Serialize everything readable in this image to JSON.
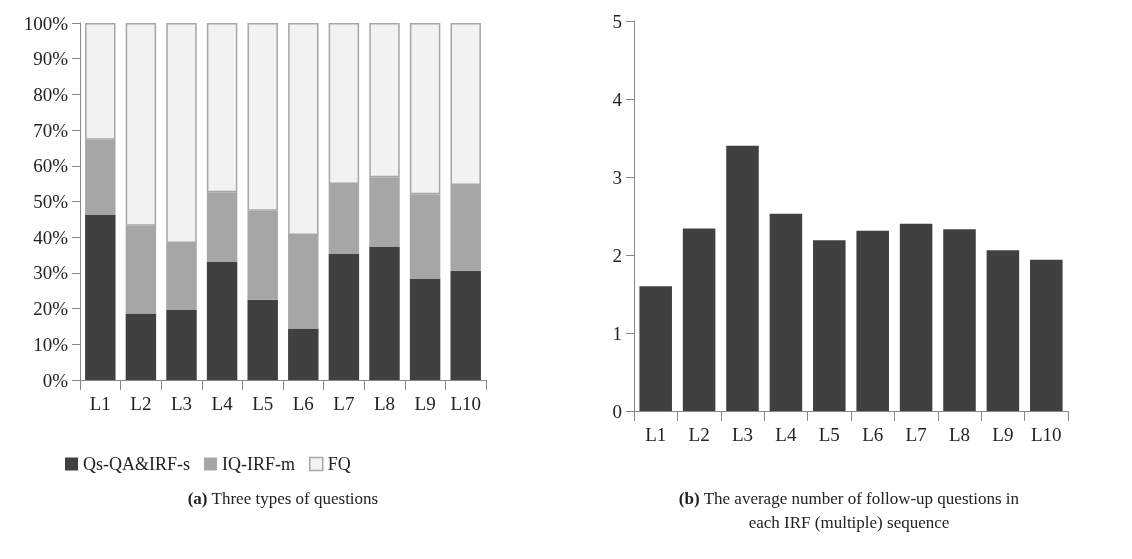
{
  "chart_data": [
    {
      "type": "bar",
      "stacked": true,
      "categories": [
        "L1",
        "L2",
        "L3",
        "L4",
        "L5",
        "L6",
        "L7",
        "L8",
        "L9",
        "L10"
      ],
      "series": [
        {
          "name": "Qs-QA&IRF-s",
          "color": "#404040",
          "values": [
            46.2,
            18.6,
            19.6,
            33.2,
            22.5,
            14.4,
            35.3,
            37.4,
            28.3,
            30.6
          ]
        },
        {
          "name": "IQ-IRF-m",
          "color": "#a6a6a6",
          "values": [
            21.1,
            24.6,
            18.8,
            19.4,
            24.9,
            26.2,
            19.6,
            19.4,
            23.7,
            24.0
          ]
        },
        {
          "name": "FQ",
          "color": "#f2f2f2",
          "values": [
            32.7,
            56.8,
            61.6,
            47.4,
            52.6,
            59.4,
            45.1,
            43.2,
            48.0,
            45.4
          ]
        }
      ],
      "ylim": [
        0,
        100
      ],
      "yticks": [
        {
          "value": 0,
          "label": "0%"
        },
        {
          "value": 10,
          "label": "10%"
        },
        {
          "value": 20,
          "label": "20%"
        },
        {
          "value": 30,
          "label": "30%"
        },
        {
          "value": 40,
          "label": "40%"
        },
        {
          "value": 50,
          "label": "50%"
        },
        {
          "value": 60,
          "label": "60%"
        },
        {
          "value": 70,
          "label": "70%"
        },
        {
          "value": 80,
          "label": "80%"
        },
        {
          "value": 90,
          "label": "90%"
        },
        {
          "value": 100,
          "label": "100%"
        }
      ],
      "grid": false,
      "legend": "bottom",
      "annotations": [
        "(a) Three types of questions"
      ]
    },
    {
      "type": "bar",
      "categories": [
        "L1",
        "L2",
        "L3",
        "L4",
        "L5",
        "L6",
        "L7",
        "L8",
        "L9",
        "L10"
      ],
      "values": [
        1.6,
        2.34,
        3.4,
        2.53,
        2.19,
        2.31,
        2.4,
        2.33,
        2.06,
        1.94
      ],
      "color": "#404040",
      "ylim": [
        0,
        5
      ],
      "yticks": [
        0,
        1,
        2,
        3,
        4,
        5
      ],
      "grid": false,
      "legend": false,
      "annotations": [
        "(b) The average number of follow-up questions in\neach IRF (multiple) sequence"
      ]
    }
  ]
}
